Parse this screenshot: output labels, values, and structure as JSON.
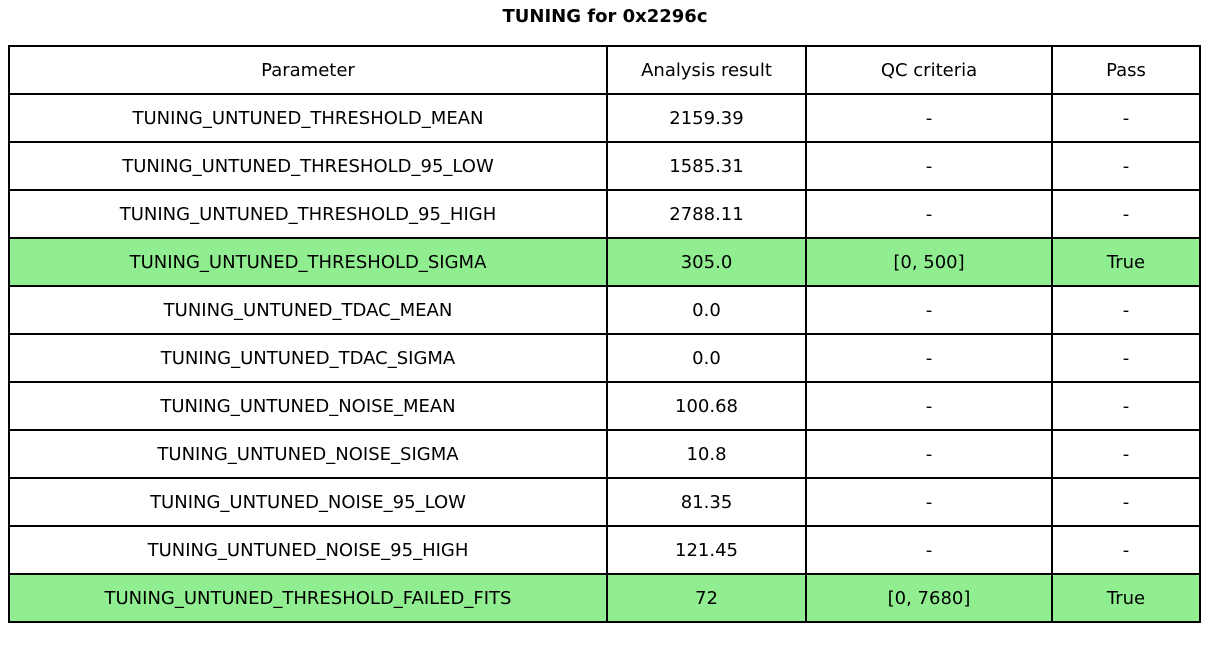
{
  "title": "TUNING for 0x2296c",
  "colors": {
    "pass_highlight": "#90EE90",
    "border": "#000000",
    "background": "#FFFFFF",
    "text": "#000000"
  },
  "chart_data": {
    "type": "table",
    "title": "TUNING for 0x2296c",
    "columns": [
      "Parameter",
      "Analysis result",
      "QC criteria",
      "Pass"
    ],
    "rows": [
      {
        "parameter": "TUNING_UNTUNED_THRESHOLD_MEAN",
        "analysis_result": "2159.39",
        "qc_criteria": "-",
        "pass": "-",
        "highlighted": false
      },
      {
        "parameter": "TUNING_UNTUNED_THRESHOLD_95_LOW",
        "analysis_result": "1585.31",
        "qc_criteria": "-",
        "pass": "-",
        "highlighted": false
      },
      {
        "parameter": "TUNING_UNTUNED_THRESHOLD_95_HIGH",
        "analysis_result": "2788.11",
        "qc_criteria": "-",
        "pass": "-",
        "highlighted": false
      },
      {
        "parameter": "TUNING_UNTUNED_THRESHOLD_SIGMA",
        "analysis_result": "305.0",
        "qc_criteria": "[0, 500]",
        "pass": "True",
        "highlighted": true
      },
      {
        "parameter": "TUNING_UNTUNED_TDAC_MEAN",
        "analysis_result": "0.0",
        "qc_criteria": "-",
        "pass": "-",
        "highlighted": false
      },
      {
        "parameter": "TUNING_UNTUNED_TDAC_SIGMA",
        "analysis_result": "0.0",
        "qc_criteria": "-",
        "pass": "-",
        "highlighted": false
      },
      {
        "parameter": "TUNING_UNTUNED_NOISE_MEAN",
        "analysis_result": "100.68",
        "qc_criteria": "-",
        "pass": "-",
        "highlighted": false
      },
      {
        "parameter": "TUNING_UNTUNED_NOISE_SIGMA",
        "analysis_result": "10.8",
        "qc_criteria": "-",
        "pass": "-",
        "highlighted": false
      },
      {
        "parameter": "TUNING_UNTUNED_NOISE_95_LOW",
        "analysis_result": "81.35",
        "qc_criteria": "-",
        "pass": "-",
        "highlighted": false
      },
      {
        "parameter": "TUNING_UNTUNED_NOISE_95_HIGH",
        "analysis_result": "121.45",
        "qc_criteria": "-",
        "pass": "-",
        "highlighted": false
      },
      {
        "parameter": "TUNING_UNTUNED_THRESHOLD_FAILED_FITS",
        "analysis_result": "72",
        "qc_criteria": "[0, 7680]",
        "pass": "True",
        "highlighted": true
      }
    ]
  }
}
